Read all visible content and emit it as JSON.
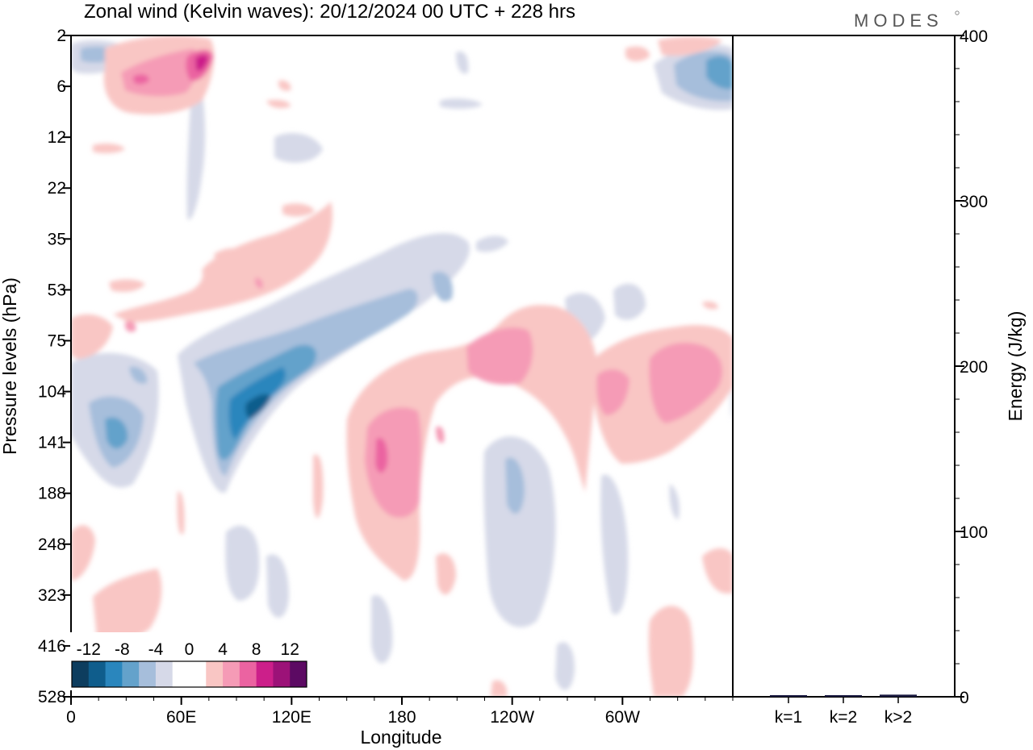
{
  "title": "Zonal wind (Kelvin waves):  20/12/2024  00 UTC  + 228 hrs",
  "brand": "MODES",
  "chart_data": [
    {
      "type": "heatmap",
      "name": "zonal-wind-hovmoller",
      "xlabel": "Longitude",
      "ylabel": "Pressure levels (hPa)",
      "x_ticks": [
        "0",
        "60E",
        "120E",
        "180",
        "120W",
        "60W"
      ],
      "x_tick_values": [
        0,
        60,
        120,
        180,
        240,
        300
      ],
      "xlim": [
        0,
        360
      ],
      "y_ticks": [
        "2",
        "6",
        "12",
        "22",
        "35",
        "53",
        "75",
        "104",
        "141",
        "188",
        "248",
        "323",
        "416",
        "528"
      ],
      "y_order": "top-to-bottom",
      "colorbar": {
        "tick_labels": [
          "-12",
          "-8",
          "-4",
          "0",
          "4",
          "8",
          "12"
        ],
        "colors": [
          "#0d3d5e",
          "#0f5d8c",
          "#2a86bd",
          "#64a2cb",
          "#a6bedb",
          "#d6d9e8",
          "#ffffff",
          "#ffffff",
          "#f9c6c4",
          "#f59bb6",
          "#eb63a1",
          "#cc1f8a",
          "#9c1278",
          "#5c0a63"
        ]
      },
      "features": [
        {
          "sign": "negative",
          "lon": [
            65,
            135
          ],
          "level": [
            "75",
            "188"
          ],
          "peak": -12
        },
        {
          "sign": "negative",
          "lon": [
            10,
            40
          ],
          "level": [
            "104",
            "188"
          ],
          "peak": -8
        },
        {
          "sign": "negative",
          "lon": [
            220,
            245
          ],
          "level": [
            "141",
            "416"
          ],
          "peak": -4
        },
        {
          "sign": "negative",
          "lon": [
            315,
            360
          ],
          "level": [
            "2",
            "6"
          ],
          "peak": -8
        },
        {
          "sign": "positive",
          "lon": [
            150,
            195
          ],
          "level": [
            "104",
            "248"
          ],
          "peak": 8
        },
        {
          "sign": "positive",
          "lon": [
            210,
            255
          ],
          "level": [
            "75",
            "141"
          ],
          "peak": 4
        },
        {
          "sign": "positive",
          "lon": [
            290,
            360
          ],
          "level": [
            "75",
            "141"
          ],
          "peak": 4
        },
        {
          "sign": "positive",
          "lon": [
            20,
            80
          ],
          "level": [
            "2",
            "6"
          ],
          "peak": 12
        },
        {
          "sign": "positive",
          "lon": [
            15,
            80
          ],
          "level": [
            "248",
            "416"
          ],
          "peak": 4
        }
      ]
    },
    {
      "type": "bar",
      "name": "kelvin-wave-energy",
      "categories": [
        "k=1",
        "k=2",
        "k>2"
      ],
      "values": [
        0.5,
        0.5,
        0.8
      ],
      "ylabel": "Energy (J/kg)",
      "ylim": [
        0,
        400
      ],
      "y_ticks": [
        0,
        100,
        200,
        300,
        400
      ],
      "bar_color": "#1a1a40"
    }
  ]
}
